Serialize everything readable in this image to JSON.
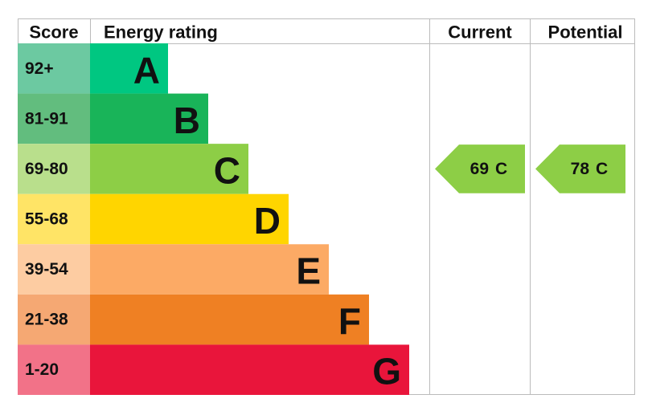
{
  "header": {
    "score": "Score",
    "energy_rating": "Energy rating",
    "current": "Current",
    "potential": "Potential"
  },
  "bands": [
    {
      "score": "92+",
      "letter": "A",
      "color": "#00c781",
      "score_color": "#6cc9a1"
    },
    {
      "score": "81-91",
      "letter": "B",
      "color": "#19b459",
      "score_color": "#62bd7e"
    },
    {
      "score": "69-80",
      "letter": "C",
      "color": "#8dce46",
      "score_color": "#b9df8c"
    },
    {
      "score": "55-68",
      "letter": "D",
      "color": "#ffd500",
      "score_color": "#ffe466"
    },
    {
      "score": "39-54",
      "letter": "E",
      "color": "#fcaa65",
      "score_color": "#fdcca2"
    },
    {
      "score": "21-38",
      "letter": "F",
      "color": "#ef8023",
      "score_color": "#f5a873"
    },
    {
      "score": "1-20",
      "letter": "G",
      "color": "#e9153b",
      "score_color": "#f27288"
    }
  ],
  "current": {
    "score": 69,
    "letter": "C"
  },
  "potential": {
    "score": 78,
    "letter": "C"
  }
}
